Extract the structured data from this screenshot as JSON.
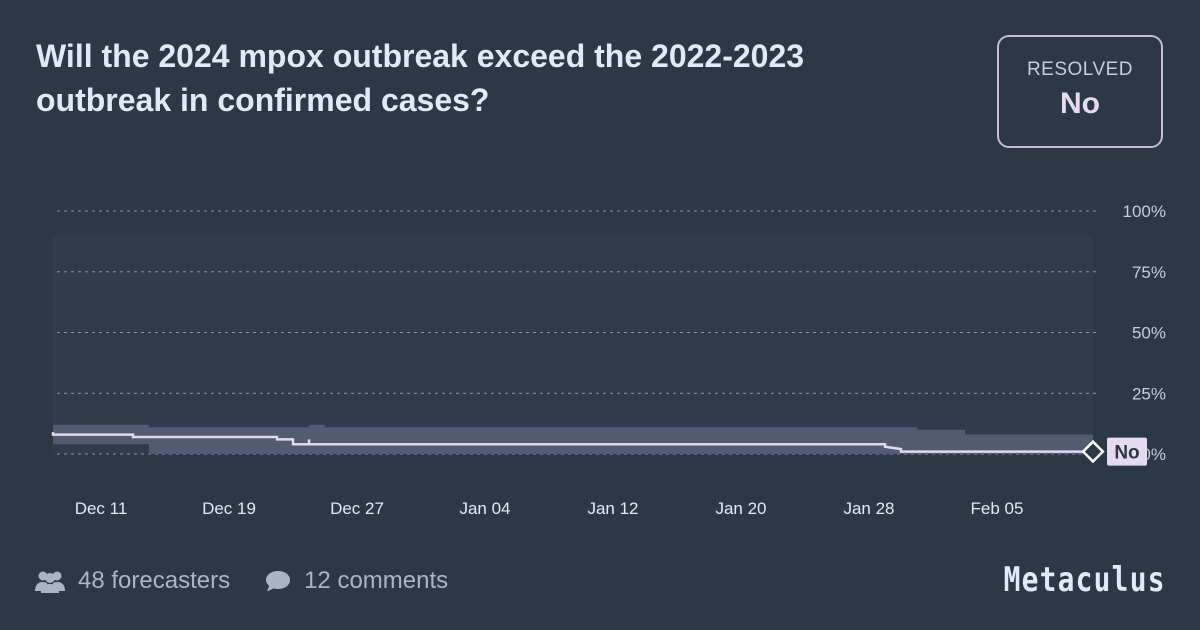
{
  "question": {
    "title": "Will the 2024 mpox outbreak exceed the 2022-2023 outbreak in confirmed cases?"
  },
  "resolution": {
    "label": "RESOLVED",
    "value": "No"
  },
  "footer": {
    "forecasters": "48 forecasters",
    "comments": "12 comments",
    "brand": "Metaculus"
  },
  "colors": {
    "background": "#2b3846",
    "band": "#555f75",
    "line": "#e2d8f0",
    "grid": "#8d99a8",
    "accent_border": "#c7b8de"
  },
  "chart_data": {
    "type": "line",
    "x_unit": "date",
    "y_unit": "percent",
    "ylim": [
      0,
      100
    ],
    "xlim": [
      "2024-12-08",
      "2025-02-11"
    ],
    "yticks": [
      {
        "value": 0,
        "label": "0%"
      },
      {
        "value": 25,
        "label": "25%"
      },
      {
        "value": 50,
        "label": "50%"
      },
      {
        "value": 75,
        "label": "75%"
      },
      {
        "value": 100,
        "label": "100%"
      }
    ],
    "xticks": [
      {
        "date": "2024-12-11",
        "label": "Dec 11"
      },
      {
        "date": "2024-12-19",
        "label": "Dec 19"
      },
      {
        "date": "2024-12-27",
        "label": "Dec 27"
      },
      {
        "date": "2025-01-04",
        "label": "Jan 04"
      },
      {
        "date": "2025-01-12",
        "label": "Jan 12"
      },
      {
        "date": "2025-01-20",
        "label": "Jan 20"
      },
      {
        "date": "2025-01-28",
        "label": "Jan 28"
      },
      {
        "date": "2025-02-05",
        "label": "Feb 05"
      }
    ],
    "grid": true,
    "series": [
      {
        "role": "community prediction",
        "points": [
          {
            "date": "2024-12-08",
            "value": 9
          },
          {
            "date": "2024-12-08",
            "value": 8
          },
          {
            "date": "2024-12-13",
            "value": 8
          },
          {
            "date": "2024-12-13",
            "value": 7
          },
          {
            "date": "2024-12-22",
            "value": 7
          },
          {
            "date": "2024-12-22",
            "value": 6
          },
          {
            "date": "2024-12-23",
            "value": 6
          },
          {
            "date": "2024-12-23",
            "value": 4
          },
          {
            "date": "2024-12-24",
            "value": 4
          },
          {
            "date": "2024-12-24",
            "value": 6
          },
          {
            "date": "2024-12-24",
            "value": 6
          },
          {
            "date": "2024-12-24",
            "value": 4
          },
          {
            "date": "2025-01-29",
            "value": 4
          },
          {
            "date": "2025-01-29",
            "value": 3
          },
          {
            "date": "2025-01-30",
            "value": 2
          },
          {
            "date": "2025-01-30",
            "value": 1
          },
          {
            "date": "2025-02-11",
            "value": 1
          }
        ],
        "band": [
          {
            "date": "2024-12-08",
            "low": 4,
            "high": 12
          },
          {
            "date": "2024-12-14",
            "low": 0,
            "high": 11
          },
          {
            "date": "2024-12-24",
            "low": 0,
            "high": 12
          },
          {
            "date": "2024-12-25",
            "low": 0,
            "high": 11
          },
          {
            "date": "2025-01-31",
            "low": 0,
            "high": 10
          },
          {
            "date": "2025-02-03",
            "low": 0,
            "high": 8
          },
          {
            "date": "2025-02-11",
            "low": 0,
            "high": 8
          }
        ]
      }
    ],
    "resolution_marker": {
      "date": "2025-02-11",
      "value": 1,
      "label": "No"
    }
  }
}
